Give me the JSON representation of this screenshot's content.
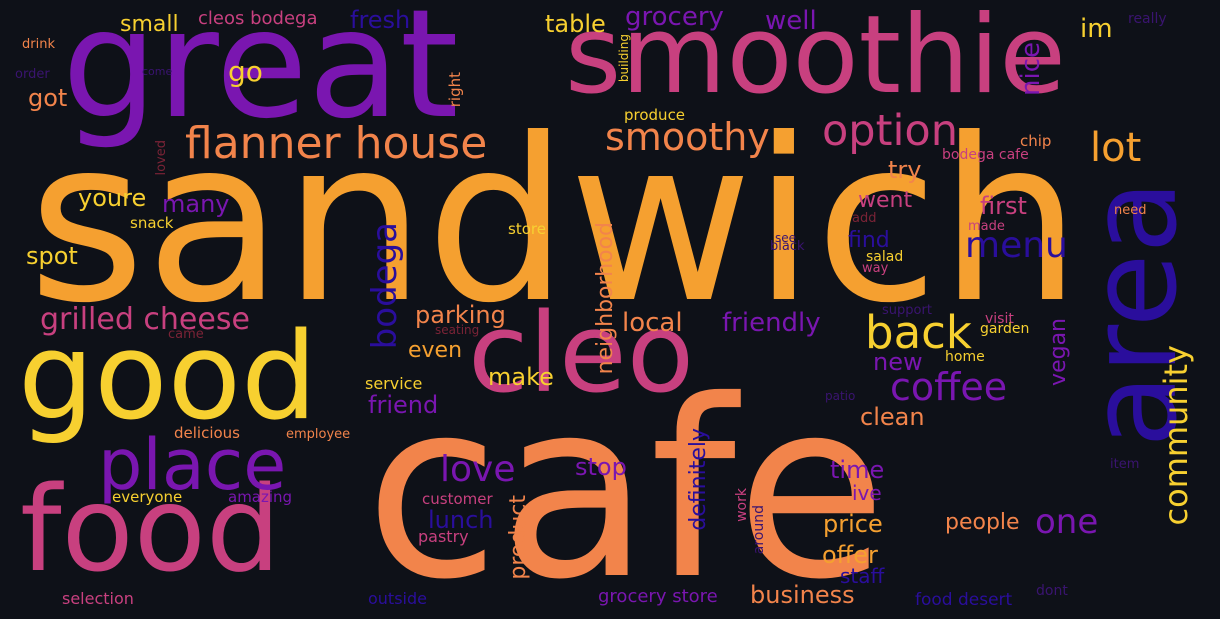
{
  "palette": {
    "background": "#0e1118",
    "orange": "#f5a030",
    "coral": "#f2844b",
    "magenta": "#c8407f",
    "purple": "#7a16b0",
    "indigo": "#2a0e9c",
    "yellow": "#f7d030",
    "dim_red": "#7a2336",
    "dim_purple": "#3a1470"
  },
  "words": [
    {
      "text": "sandwich"
    },
    {
      "text": "cafe"
    },
    {
      "text": "great"
    },
    {
      "text": "smoothie"
    },
    {
      "text": "good"
    },
    {
      "text": "food"
    },
    {
      "text": "cleo"
    },
    {
      "text": "area"
    },
    {
      "text": "place"
    },
    {
      "text": "flanner house"
    },
    {
      "text": "option"
    },
    {
      "text": "smoothy"
    },
    {
      "text": "back"
    },
    {
      "text": "coffee"
    },
    {
      "text": "community"
    },
    {
      "text": "menu"
    },
    {
      "text": "lot"
    },
    {
      "text": "grilled cheese"
    },
    {
      "text": "love"
    },
    {
      "text": "bodega"
    },
    {
      "text": "one"
    },
    {
      "text": "fresh"
    },
    {
      "text": "grocery"
    },
    {
      "text": "well"
    },
    {
      "text": "im"
    },
    {
      "text": "go"
    },
    {
      "text": "got"
    },
    {
      "text": "table"
    },
    {
      "text": "small"
    },
    {
      "text": "cleos bodega"
    },
    {
      "text": "nice"
    },
    {
      "text": "youre"
    },
    {
      "text": "many"
    },
    {
      "text": "spot"
    },
    {
      "text": "try"
    },
    {
      "text": "went"
    },
    {
      "text": "first"
    },
    {
      "text": "find"
    },
    {
      "text": "local"
    },
    {
      "text": "friendly"
    },
    {
      "text": "parking"
    },
    {
      "text": "neighborhood"
    },
    {
      "text": "make"
    },
    {
      "text": "even"
    },
    {
      "text": "friend"
    },
    {
      "text": "new"
    },
    {
      "text": "vegan"
    },
    {
      "text": "clean"
    },
    {
      "text": "stop"
    },
    {
      "text": "time"
    },
    {
      "text": "ive"
    },
    {
      "text": "lunch"
    },
    {
      "text": "product"
    },
    {
      "text": "definitely"
    },
    {
      "text": "price"
    },
    {
      "text": "people"
    },
    {
      "text": "offer"
    },
    {
      "text": "staff"
    },
    {
      "text": "business"
    },
    {
      "text": "grocery store"
    },
    {
      "text": "food desert"
    },
    {
      "text": "outside"
    },
    {
      "text": "selection"
    },
    {
      "text": "pastry"
    },
    {
      "text": "customer"
    },
    {
      "text": "amazing"
    },
    {
      "text": "everyone"
    },
    {
      "text": "delicious"
    },
    {
      "text": "employee"
    },
    {
      "text": "service"
    },
    {
      "text": "seating"
    },
    {
      "text": "came"
    },
    {
      "text": "store"
    },
    {
      "text": "snack"
    },
    {
      "text": "loved"
    },
    {
      "text": "right"
    },
    {
      "text": "building"
    },
    {
      "text": "produce"
    },
    {
      "text": "drink"
    },
    {
      "text": "order"
    },
    {
      "text": "come"
    },
    {
      "text": "really"
    },
    {
      "text": "chip"
    },
    {
      "text": "bodega cafe"
    },
    {
      "text": "need"
    },
    {
      "text": "add"
    },
    {
      "text": "made"
    },
    {
      "text": "see"
    },
    {
      "text": "black"
    },
    {
      "text": "salad"
    },
    {
      "text": "way"
    },
    {
      "text": "support"
    },
    {
      "text": "visit"
    },
    {
      "text": "garden"
    },
    {
      "text": "home"
    },
    {
      "text": "patio"
    },
    {
      "text": "item"
    },
    {
      "text": "work"
    },
    {
      "text": "around"
    },
    {
      "text": "dont"
    }
  ]
}
